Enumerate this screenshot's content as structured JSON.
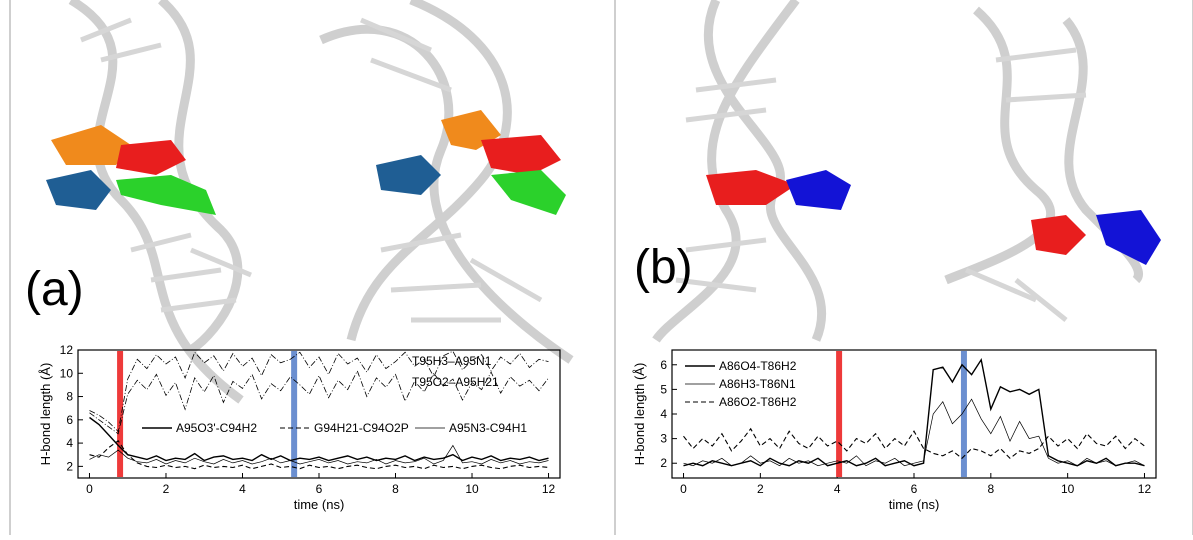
{
  "panels": {
    "a": {
      "label": "(a)"
    },
    "b": {
      "label": "(b)"
    }
  },
  "chart_data": [
    {
      "type": "line",
      "panel": "(a)",
      "xlabel": "time (ns)",
      "ylabel": "H-bond length (Å)",
      "xlim": [
        -0.3,
        12.3
      ],
      "ylim": [
        1,
        12
      ],
      "xticks": [
        "0",
        "2",
        "4",
        "6",
        "8",
        "10",
        "12"
      ],
      "yticks": [
        "2",
        "4",
        "6",
        "8",
        "10",
        "12"
      ],
      "grid": false,
      "markers": [
        {
          "x": 0.8,
          "color": "#ee3a3a"
        },
        {
          "x": 5.35,
          "color": "#6b8fd0"
        }
      ],
      "series": [
        {
          "name": "T95H3–A95N1",
          "style": "dashdot",
          "x": [
            0.0,
            0.25,
            0.5,
            0.75,
            1.0,
            1.25,
            1.5,
            1.75,
            2.0,
            2.25,
            2.5,
            2.75,
            3.0,
            3.25,
            3.5,
            3.75,
            4.0,
            4.25,
            4.5,
            4.75,
            5.0,
            5.25,
            5.5,
            5.75,
            6.0,
            6.25,
            6.5,
            6.75,
            7.0,
            7.25,
            7.5,
            7.75,
            8.0,
            8.25,
            8.5,
            8.75,
            9.0,
            9.25,
            9.5,
            9.75,
            10.0,
            10.25,
            10.5,
            10.75,
            11.0,
            11.25,
            11.5,
            11.75,
            12.0
          ],
          "values": [
            6.8,
            6.4,
            5.8,
            5.0,
            9.5,
            11.2,
            10.4,
            11.6,
            10.8,
            11.4,
            9.6,
            11.8,
            10.9,
            11.5,
            10.2,
            11.7,
            10.6,
            11.3,
            9.8,
            11.6,
            10.9,
            11.2,
            11.8,
            10.5,
            11.4,
            9.9,
            11.7,
            10.8,
            11.3,
            10.1,
            11.6,
            10.4,
            11.0,
            11.8,
            10.6,
            11.2,
            9.7,
            11.5,
            11.9,
            10.3,
            11.1,
            11.6,
            10.2,
            11.4,
            10.8,
            11.7,
            10.5,
            11.2,
            11.0
          ]
        },
        {
          "name": "T95O2–A95H21",
          "style": "dashdot",
          "x": [
            0.0,
            0.25,
            0.5,
            0.75,
            1.0,
            1.25,
            1.5,
            1.75,
            2.0,
            2.25,
            2.5,
            2.75,
            3.0,
            3.25,
            3.5,
            3.75,
            4.0,
            4.25,
            4.5,
            4.75,
            5.0,
            5.25,
            5.5,
            5.75,
            6.0,
            6.25,
            6.5,
            6.75,
            7.0,
            7.25,
            7.5,
            7.75,
            8.0,
            8.25,
            8.5,
            8.75,
            9.0,
            9.25,
            9.5,
            9.75,
            10.0,
            10.25,
            10.5,
            10.75,
            11.0,
            11.25,
            11.5,
            11.75,
            12.0
          ],
          "values": [
            6.6,
            6.0,
            5.4,
            4.8,
            8.2,
            9.4,
            8.6,
            9.9,
            8.1,
            9.2,
            6.9,
            9.6,
            8.4,
            9.8,
            7.5,
            9.3,
            8.7,
            9.9,
            7.8,
            9.1,
            8.5,
            9.7,
            9.0,
            8.2,
            9.8,
            7.9,
            9.4,
            8.6,
            10.2,
            8.0,
            9.6,
            8.8,
            9.9,
            7.6,
            9.3,
            8.4,
            10.0,
            8.9,
            9.5,
            7.7,
            9.2,
            8.6,
            10.1,
            8.3,
            9.7,
            8.9,
            9.4,
            8.5,
            9.6
          ]
        },
        {
          "name": "A95O3'-C94H2",
          "style": "solid",
          "x": [
            0.0,
            0.25,
            0.5,
            0.75,
            1.0,
            1.25,
            1.5,
            1.75,
            2.0,
            2.25,
            2.5,
            2.75,
            3.0,
            3.25,
            3.5,
            3.75,
            4.0,
            4.25,
            4.5,
            4.75,
            5.0,
            5.25,
            5.5,
            5.75,
            6.0,
            6.25,
            6.5,
            6.75,
            7.0,
            7.25,
            7.5,
            7.75,
            8.0,
            8.25,
            8.5,
            8.75,
            9.0,
            9.25,
            9.5,
            9.75,
            10.0,
            10.25,
            10.5,
            10.75,
            11.0,
            11.25,
            11.5,
            11.75,
            12.0
          ],
          "values": [
            6.2,
            5.6,
            4.7,
            3.8,
            3.0,
            2.8,
            2.6,
            2.9,
            2.5,
            2.7,
            2.6,
            3.1,
            2.5,
            2.8,
            2.9,
            2.6,
            2.7,
            2.5,
            3.0,
            2.6,
            2.9,
            2.5,
            2.7,
            2.6,
            2.8,
            2.5,
            2.7,
            2.9,
            2.6,
            2.8,
            2.5,
            2.7,
            2.6,
            2.9,
            2.5,
            2.8,
            2.6,
            2.7,
            3.0,
            2.5,
            2.8,
            2.6,
            2.9,
            2.5,
            2.7,
            2.6,
            2.8,
            2.5,
            2.7
          ]
        },
        {
          "name": "G94H21-C94O2P",
          "style": "dashed",
          "x": [
            0.0,
            0.25,
            0.5,
            0.75,
            1.0,
            1.25,
            1.5,
            1.75,
            2.0,
            2.25,
            2.5,
            2.75,
            3.0,
            3.25,
            3.5,
            3.75,
            4.0,
            4.25,
            4.5,
            4.75,
            5.0,
            5.25,
            5.5,
            5.75,
            6.0,
            6.25,
            6.5,
            6.75,
            7.0,
            7.25,
            7.5,
            7.75,
            8.0,
            8.25,
            8.5,
            8.75,
            9.0,
            9.25,
            9.5,
            9.75,
            10.0,
            10.25,
            10.5,
            10.75,
            11.0,
            11.25,
            11.5,
            11.75,
            12.0
          ],
          "values": [
            3.0,
            2.8,
            3.6,
            4.2,
            3.0,
            2.3,
            2.0,
            1.9,
            2.1,
            1.9,
            2.0,
            1.8,
            2.1,
            1.9,
            2.0,
            1.9,
            2.1,
            1.8,
            2.0,
            2.2,
            1.9,
            2.0,
            1.8,
            2.1,
            1.9,
            2.0,
            1.8,
            2.0,
            2.1,
            1.9,
            1.8,
            2.0,
            2.1,
            1.9,
            2.0,
            1.8,
            2.1,
            1.9,
            2.0,
            1.8,
            2.0,
            2.1,
            1.9,
            1.8,
            2.0,
            2.1,
            1.9,
            2.0,
            1.9
          ]
        },
        {
          "name": "A95N3-C94H1",
          "style": "thin",
          "x": [
            0.0,
            0.25,
            0.5,
            0.75,
            1.0,
            1.25,
            1.5,
            1.75,
            2.0,
            2.25,
            2.5,
            2.75,
            3.0,
            3.25,
            3.5,
            3.75,
            4.0,
            4.25,
            4.5,
            4.75,
            5.0,
            5.25,
            5.5,
            5.75,
            6.0,
            6.25,
            6.5,
            6.75,
            7.0,
            7.25,
            7.5,
            7.75,
            8.0,
            8.25,
            8.5,
            8.75,
            9.0,
            9.25,
            9.5,
            9.75,
            10.0,
            10.25,
            10.5,
            10.75,
            11.0,
            11.25,
            11.5,
            11.75,
            12.0
          ],
          "values": [
            2.6,
            3.0,
            2.8,
            3.4,
            2.7,
            2.4,
            2.3,
            2.6,
            2.2,
            2.5,
            2.3,
            2.7,
            2.4,
            2.2,
            2.6,
            2.3,
            2.5,
            2.2,
            2.4,
            2.7,
            2.3,
            2.5,
            2.2,
            2.4,
            2.6,
            2.3,
            2.5,
            2.2,
            2.4,
            2.3,
            2.6,
            2.2,
            2.5,
            2.3,
            2.4,
            2.7,
            2.2,
            2.5,
            3.8,
            2.3,
            2.4,
            2.2,
            2.6,
            2.3,
            2.5,
            2.2,
            2.4,
            2.3,
            2.5
          ]
        }
      ]
    },
    {
      "type": "line",
      "panel": "(b)",
      "xlabel": "time (ns)",
      "ylabel": "H-bond length (Å)",
      "xlim": [
        -0.3,
        12.3
      ],
      "ylim": [
        1.4,
        6.6
      ],
      "xticks": [
        "0",
        "2",
        "4",
        "6",
        "8",
        "10",
        "12"
      ],
      "yticks": [
        "2",
        "3",
        "4",
        "5",
        "6"
      ],
      "grid": false,
      "markers": [
        {
          "x": 4.05,
          "color": "#ee3a3a"
        },
        {
          "x": 7.3,
          "color": "#6b8fd0"
        }
      ],
      "series": [
        {
          "name": "A86O4-T86H2",
          "style": "solid",
          "x": [
            0.0,
            0.25,
            0.5,
            0.75,
            1.0,
            1.25,
            1.5,
            1.75,
            2.0,
            2.25,
            2.5,
            2.75,
            3.0,
            3.25,
            3.5,
            3.75,
            4.0,
            4.25,
            4.5,
            4.75,
            5.0,
            5.25,
            5.5,
            5.75,
            6.0,
            6.25,
            6.5,
            6.75,
            7.0,
            7.25,
            7.5,
            7.75,
            8.0,
            8.25,
            8.5,
            8.75,
            9.0,
            9.25,
            9.5,
            9.75,
            10.0,
            10.25,
            10.5,
            10.75,
            11.0,
            11.25,
            11.5,
            11.75,
            12.0
          ],
          "values": [
            1.9,
            2.0,
            1.9,
            2.1,
            2.0,
            1.9,
            2.0,
            2.1,
            1.9,
            2.2,
            2.0,
            1.9,
            2.1,
            2.0,
            2.2,
            1.9,
            2.0,
            2.1,
            1.9,
            2.0,
            2.2,
            1.9,
            2.0,
            2.1,
            1.9,
            2.0,
            5.8,
            5.9,
            5.3,
            6.0,
            5.6,
            6.2,
            4.2,
            5.1,
            4.9,
            5.0,
            4.8,
            5.0,
            2.3,
            2.1,
            2.0,
            1.9,
            2.1,
            2.0,
            2.2,
            1.9,
            2.0,
            2.0,
            1.9
          ]
        },
        {
          "name": "A86H3-T86N1",
          "style": "thin",
          "x": [
            0.0,
            0.25,
            0.5,
            0.75,
            1.0,
            1.25,
            1.5,
            1.75,
            2.0,
            2.25,
            2.5,
            2.75,
            3.0,
            3.25,
            3.5,
            3.75,
            4.0,
            4.25,
            4.5,
            4.75,
            5.0,
            5.25,
            5.5,
            5.75,
            6.0,
            6.25,
            6.5,
            6.75,
            7.0,
            7.25,
            7.5,
            7.75,
            8.0,
            8.25,
            8.5,
            8.75,
            9.0,
            9.25,
            9.5,
            9.75,
            10.0,
            10.25,
            10.5,
            10.75,
            11.0,
            11.25,
            11.5,
            11.75,
            12.0
          ],
          "values": [
            2.0,
            1.9,
            2.1,
            2.0,
            2.2,
            1.9,
            2.0,
            2.3,
            2.0,
            2.1,
            1.9,
            2.2,
            2.0,
            2.1,
            1.9,
            2.0,
            2.1,
            2.0,
            2.3,
            1.9,
            2.1,
            2.0,
            2.2,
            1.9,
            2.0,
            2.1,
            4.0,
            4.5,
            3.6,
            4.0,
            4.6,
            3.8,
            3.2,
            3.9,
            2.9,
            3.7,
            3.0,
            3.1,
            2.2,
            2.0,
            2.1,
            1.9,
            2.2,
            2.0,
            2.1,
            1.9,
            2.0,
            2.1,
            1.9
          ]
        },
        {
          "name": "A86O2-T86H2",
          "style": "dashed",
          "x": [
            0.0,
            0.25,
            0.5,
            0.75,
            1.0,
            1.25,
            1.5,
            1.75,
            2.0,
            2.25,
            2.5,
            2.75,
            3.0,
            3.25,
            3.5,
            3.75,
            4.0,
            4.25,
            4.5,
            4.75,
            5.0,
            5.25,
            5.5,
            5.75,
            6.0,
            6.25,
            6.5,
            6.75,
            7.0,
            7.25,
            7.5,
            7.75,
            8.0,
            8.25,
            8.5,
            8.75,
            9.0,
            9.25,
            9.5,
            9.75,
            10.0,
            10.25,
            10.5,
            10.75,
            11.0,
            11.25,
            11.5,
            11.75,
            12.0
          ],
          "values": [
            3.1,
            2.6,
            3.0,
            2.7,
            3.2,
            2.5,
            2.9,
            3.4,
            2.7,
            3.0,
            2.6,
            3.3,
            2.8,
            2.6,
            3.1,
            2.7,
            2.9,
            2.5,
            3.0,
            2.8,
            3.2,
            2.6,
            3.0,
            2.7,
            3.3,
            2.6,
            2.4,
            2.3,
            2.5,
            2.2,
            2.6,
            2.5,
            2.3,
            2.6,
            2.2,
            2.5,
            2.4,
            2.6,
            3.1,
            2.7,
            3.0,
            2.6,
            3.2,
            2.8,
            2.7,
            3.1,
            2.6,
            3.0,
            2.7
          ]
        }
      ]
    }
  ]
}
